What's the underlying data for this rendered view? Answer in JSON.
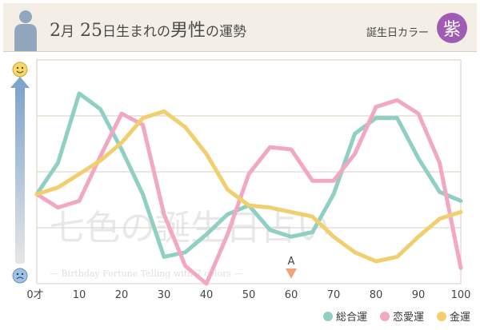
{
  "header": {
    "month": "2",
    "month_unit": "月",
    "day": "25",
    "title_rest": "日生まれの",
    "title_subject": "男性",
    "title_tail": "の運勢",
    "birthday_color_label": "誕生日カラー",
    "color_char": "紫"
  },
  "watermark": {
    "logo_text": "七色の誕生日占い",
    "sub_text": "— Birthday Fortune Telling with 7 colors —"
  },
  "marker": {
    "label": "A",
    "x": 60
  },
  "colors": {
    "general": "#8fcfc4",
    "love": "#f2a7c2",
    "money": "#f1cf6e",
    "badge": "#a05cb5"
  },
  "chart_data": {
    "type": "line",
    "x_ticks": [
      "0才",
      "10",
      "20",
      "30",
      "40",
      "50",
      "60",
      "70",
      "80",
      "90",
      "100"
    ],
    "xlim": [
      0,
      100
    ],
    "ylim": [
      0,
      100
    ],
    "series": [
      {
        "name": "総合運",
        "color": "#8fcfc4",
        "x": [
          0,
          5,
          10,
          15,
          20,
          25,
          30,
          35,
          40,
          45,
          50,
          55,
          60,
          65,
          70,
          75,
          80,
          85,
          90,
          95,
          100
        ],
        "y": [
          40,
          54,
          85,
          78,
          60,
          40,
          12,
          14,
          22,
          31,
          35,
          24,
          21,
          23,
          40,
          67,
          74,
          74,
          56,
          41,
          37
        ]
      },
      {
        "name": "恋愛運",
        "color": "#f2a7c2",
        "x": [
          0,
          5,
          10,
          15,
          20,
          25,
          30,
          35,
          40,
          45,
          50,
          55,
          60,
          65,
          70,
          75,
          80,
          85,
          90,
          95,
          100
        ],
        "y": [
          40,
          34,
          37,
          57,
          76,
          71,
          31,
          8,
          0,
          22,
          49,
          61,
          60,
          46,
          46,
          58,
          79,
          82,
          76,
          54,
          7
        ]
      },
      {
        "name": "金運",
        "color": "#f1cf6e",
        "x": [
          0,
          5,
          10,
          15,
          20,
          25,
          30,
          35,
          40,
          45,
          50,
          55,
          60,
          65,
          70,
          75,
          80,
          85,
          90,
          95,
          100
        ],
        "y": [
          40,
          43,
          49,
          55,
          63,
          74,
          77,
          70,
          58,
          42,
          35,
          34,
          32,
          30,
          21,
          14,
          10,
          12,
          21,
          29,
          32
        ]
      }
    ],
    "grid": true
  }
}
